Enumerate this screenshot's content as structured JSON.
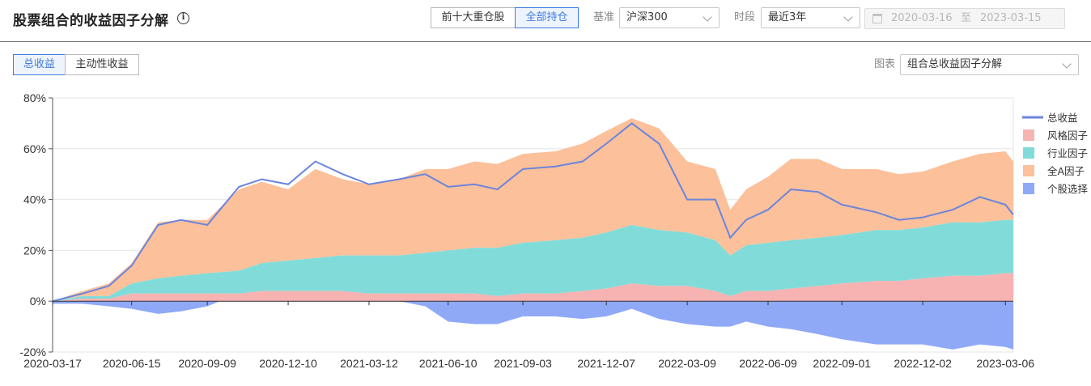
{
  "header": {
    "title": "股票组合的收益因子分解",
    "info_icon": "info-icon",
    "holding_tabs": [
      {
        "label": "前十大重仓股",
        "active": false
      },
      {
        "label": "全部持仓",
        "active": true
      }
    ],
    "benchmark_label": "基准",
    "benchmark_value": "沪深300",
    "period_label": "时段",
    "period_value": "最近3年",
    "date_start": "2020-03-16",
    "date_sep": "至",
    "date_end": "2023-03-15"
  },
  "toolbar": {
    "return_tabs": [
      {
        "label": "总收益",
        "active": true
      },
      {
        "label": "主动性收益",
        "active": false
      }
    ],
    "chart_label": "图表",
    "chart_select": "组合总收益因子分解"
  },
  "colors": {
    "total": "#6b85dd",
    "style": "#f6b3b2",
    "industry": "#81dcd9",
    "marketA": "#fcc09a",
    "stock": "#8fa9f7",
    "accent": "#3d7ae0"
  },
  "chart_data": {
    "type": "area",
    "x_ticks": [
      "2020-03-17",
      "2020-06-15",
      "2020-09-09",
      "2020-12-10",
      "2021-03-12",
      "2021-06-10",
      "2021-09-03",
      "2021-12-07",
      "2022-03-09",
      "2022-06-09",
      "2022-09-01",
      "2022-12-02",
      "2023-03-06"
    ],
    "y_ticks": [
      "80%",
      "60%",
      "40%",
      "20%",
      "0%",
      "-20%"
    ],
    "ylim": [
      -20,
      80
    ],
    "y_unit": "%",
    "legend_position": "right",
    "x_dates": [
      "2020-03-17",
      "2020-04-20",
      "2020-05-20",
      "2020-06-15",
      "2020-07-15",
      "2020-08-10",
      "2020-09-09",
      "2020-10-15",
      "2020-11-10",
      "2020-12-10",
      "2021-01-10",
      "2021-02-10",
      "2021-03-12",
      "2021-04-15",
      "2021-05-15",
      "2021-06-10",
      "2021-07-10",
      "2021-08-05",
      "2021-09-03",
      "2021-10-10",
      "2021-11-10",
      "2021-12-07",
      "2022-01-05",
      "2022-02-05",
      "2022-03-09",
      "2022-04-10",
      "2022-04-27",
      "2022-05-15",
      "2022-06-09",
      "2022-07-05",
      "2022-08-05",
      "2022-09-01",
      "2022-10-10",
      "2022-11-05",
      "2022-12-02",
      "2023-01-05",
      "2023-02-05",
      "2023-03-06",
      "2023-03-15"
    ],
    "series": [
      {
        "name": "总收益",
        "kind": "line",
        "values": [
          0,
          3,
          6,
          14,
          30,
          32,
          30,
          45,
          48,
          46,
          55,
          50,
          46,
          48,
          50,
          45,
          46,
          44,
          52,
          53,
          55,
          62,
          70,
          62,
          40,
          40,
          25,
          32,
          36,
          44,
          43,
          38,
          35,
          32,
          33,
          36,
          41,
          38,
          34
        ]
      },
      {
        "name": "风格因子",
        "kind": "area",
        "values": [
          0,
          1,
          1,
          3,
          3,
          3,
          3,
          3,
          4,
          4,
          4,
          4,
          3,
          3,
          3,
          3,
          3,
          2,
          3,
          3,
          4,
          5,
          7,
          6,
          6,
          4,
          2,
          4,
          4,
          5,
          6,
          7,
          8,
          8,
          9,
          10,
          10,
          11,
          11
        ]
      },
      {
        "name": "行业因子",
        "kind": "area",
        "values": [
          0,
          1,
          1,
          4,
          6,
          7,
          8,
          9,
          11,
          12,
          13,
          14,
          15,
          15,
          16,
          17,
          18,
          19,
          20,
          21,
          21,
          22,
          23,
          22,
          21,
          20,
          16,
          18,
          19,
          19,
          19,
          19,
          20,
          20,
          20,
          21,
          21,
          21,
          21
        ]
      },
      {
        "name": "全A因子",
        "kind": "area",
        "values": [
          0,
          2,
          5,
          8,
          22,
          22,
          21,
          32,
          32,
          28,
          35,
          30,
          28,
          30,
          33,
          32,
          34,
          33,
          35,
          35,
          37,
          40,
          42,
          40,
          28,
          28,
          18,
          22,
          26,
          32,
          31,
          26,
          24,
          22,
          22,
          24,
          27,
          27,
          23
        ]
      },
      {
        "name": "个股选择",
        "kind": "area",
        "values": [
          -1,
          -1,
          -2,
          -3,
          -5,
          -4,
          -2,
          3,
          2,
          1,
          3,
          2,
          0,
          0,
          -2,
          -8,
          -9,
          -9,
          -6,
          -6,
          -7,
          -6,
          -3,
          -7,
          -9,
          -10,
          -10,
          -8,
          -10,
          -11,
          -13,
          -15,
          -17,
          -17,
          -17,
          -19,
          -17,
          -18,
          -19
        ]
      }
    ]
  }
}
